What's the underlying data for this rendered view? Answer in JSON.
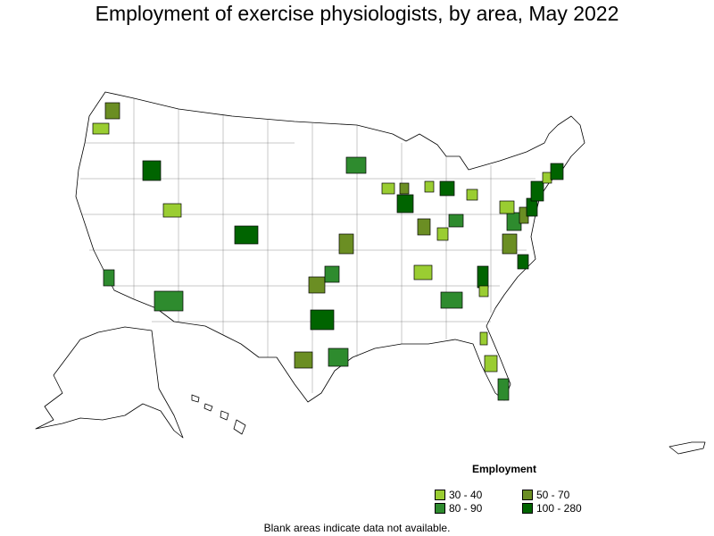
{
  "title": "Employment of exercise physiologists, by area, May 2022",
  "legend": {
    "title": "Employment",
    "items": [
      {
        "label": "30 - 40",
        "color": "#9acd32"
      },
      {
        "label": "50 - 70",
        "color": "#6b8e23"
      },
      {
        "label": "80 - 90",
        "color": "#2e8b2e"
      },
      {
        "label": "100 - 280",
        "color": "#006400"
      }
    ]
  },
  "note": "Blank areas indicate data not available.",
  "colors": {
    "c30": "#9acd32",
    "c50": "#6b8e23",
    "c80": "#2e8b2e",
    "c100": "#006400"
  }
}
